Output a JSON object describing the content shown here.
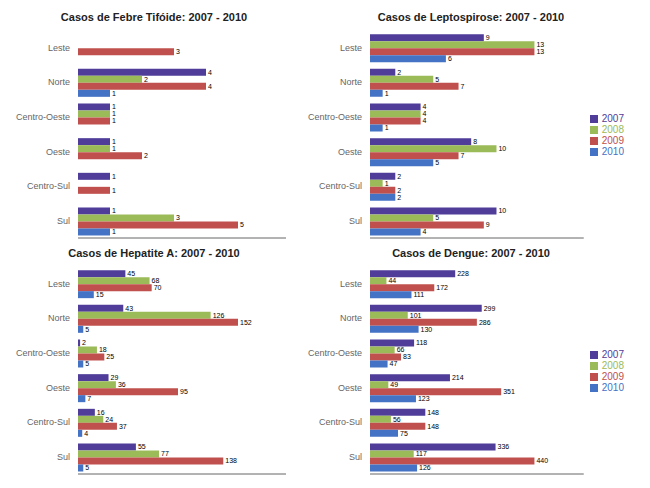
{
  "chart_data": [
    {
      "type": "bar",
      "orientation": "horizontal",
      "title": "Casos de Febre Tifóide: 2007 - 2010",
      "categories": [
        "Leste",
        "Norte",
        "Centro-Oeste",
        "Oeste",
        "Centro-Sul",
        "Sul"
      ],
      "series": [
        {
          "name": "2007",
          "color": "#4F3D99",
          "values": [
            0,
            4,
            1,
            1,
            1,
            1
          ]
        },
        {
          "name": "2008",
          "color": "#9BBB59",
          "values": [
            0,
            2,
            1,
            1,
            0,
            3
          ]
        },
        {
          "name": "2009",
          "color": "#C0504D",
          "values": [
            3,
            4,
            1,
            2,
            1,
            5
          ]
        },
        {
          "name": "2010",
          "color": "#4472C4",
          "values": [
            0,
            1,
            0,
            0,
            0,
            1
          ]
        }
      ],
      "xlim": [
        0,
        6.5
      ],
      "tick_labels": "y",
      "data_labels": true,
      "grid": false
    },
    {
      "type": "bar",
      "orientation": "horizontal",
      "title": "Casos de Leptospirose: 2007 - 2010",
      "categories": [
        "Leste",
        "Norte",
        "Centro-Oeste",
        "Oeste",
        "Centro-Sul",
        "Sul"
      ],
      "series": [
        {
          "name": "2007",
          "color": "#4F3D99",
          "values": [
            9,
            2,
            4,
            8,
            2,
            10
          ]
        },
        {
          "name": "2008",
          "color": "#9BBB59",
          "values": [
            13,
            5,
            4,
            10,
            1,
            5
          ]
        },
        {
          "name": "2009",
          "color": "#C0504D",
          "values": [
            13,
            7,
            4,
            7,
            2,
            9
          ]
        },
        {
          "name": "2010",
          "color": "#4472C4",
          "values": [
            6,
            1,
            1,
            5,
            2,
            4
          ]
        }
      ],
      "xlim": [
        0,
        16.9
      ],
      "tick_labels": "y",
      "data_labels": true,
      "grid": false,
      "legend": "right"
    },
    {
      "type": "bar",
      "orientation": "horizontal",
      "title": "Casos de Hepatite A: 2007 - 2010",
      "categories": [
        "Leste",
        "Norte",
        "Centro-Oeste",
        "Oeste",
        "Centro-Sul",
        "Sul"
      ],
      "series": [
        {
          "name": "2007",
          "color": "#4F3D99",
          "values": [
            45,
            43,
            2,
            29,
            16,
            55
          ]
        },
        {
          "name": "2008",
          "color": "#9BBB59",
          "values": [
            68,
            126,
            18,
            36,
            24,
            77
          ]
        },
        {
          "name": "2009",
          "color": "#C0504D",
          "values": [
            70,
            152,
            25,
            95,
            37,
            138
          ]
        },
        {
          "name": "2010",
          "color": "#4472C4",
          "values": [
            15,
            5,
            5,
            7,
            4,
            5
          ]
        }
      ],
      "xlim": [
        0,
        197.6
      ],
      "tick_labels": "y",
      "data_labels": true,
      "grid": false
    },
    {
      "type": "bar",
      "orientation": "horizontal",
      "title": "Casos de Dengue: 2007 - 2010",
      "categories": [
        "Leste",
        "Norte",
        "Centro-Oeste",
        "Oeste",
        "Centro-Sul",
        "Sul"
      ],
      "series": [
        {
          "name": "2007",
          "color": "#4F3D99",
          "values": [
            228,
            299,
            118,
            214,
            148,
            336
          ]
        },
        {
          "name": "2008",
          "color": "#9BBB59",
          "values": [
            44,
            101,
            66,
            49,
            56,
            117
          ]
        },
        {
          "name": "2009",
          "color": "#C0504D",
          "values": [
            172,
            286,
            83,
            351,
            148,
            440
          ]
        },
        {
          "name": "2010",
          "color": "#4472C4",
          "values": [
            111,
            130,
            47,
            123,
            75,
            126
          ]
        }
      ],
      "xlim": [
        0,
        572
      ],
      "tick_labels": "y",
      "data_labels": true,
      "grid": false,
      "legend": "right"
    }
  ]
}
